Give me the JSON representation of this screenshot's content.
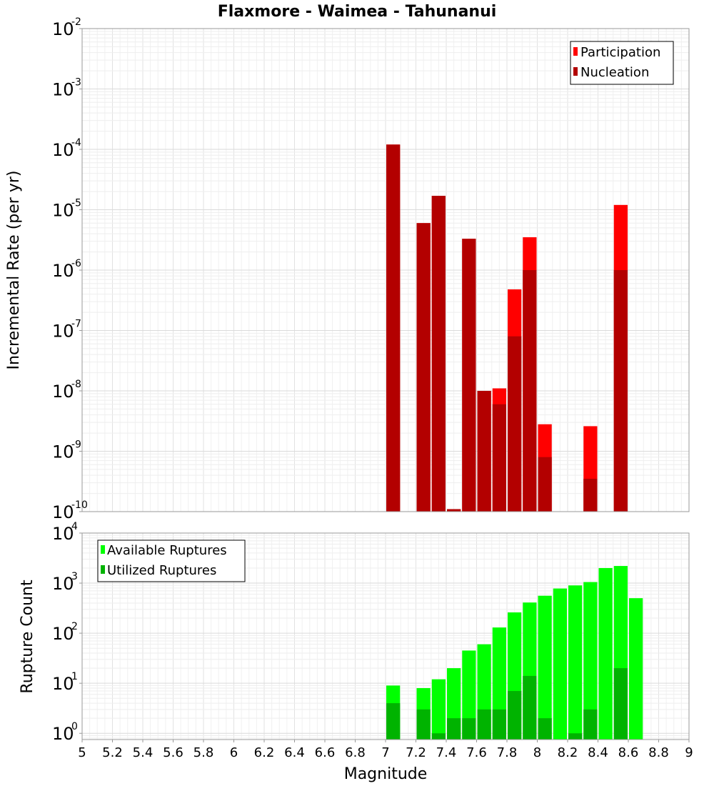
{
  "chart_data": [
    {
      "type": "bar",
      "title": "Flaxmore - Waimea - Tahunanui",
      "xlabel": "",
      "ylabel": "Incremental Rate (per yr)",
      "yscale": "log",
      "ylim": [
        1e-10,
        0.01
      ],
      "xlim": [
        5,
        9
      ],
      "bin_width": 0.1,
      "y_ticks": [
        {
          "base": "10",
          "exp": "-2"
        },
        {
          "base": "10",
          "exp": "-3"
        },
        {
          "base": "10",
          "exp": "-4"
        },
        {
          "base": "10",
          "exp": "-5"
        },
        {
          "base": "10",
          "exp": "-6"
        },
        {
          "base": "10",
          "exp": "-7"
        },
        {
          "base": "10",
          "exp": "-8"
        },
        {
          "base": "10",
          "exp": "-9"
        },
        {
          "base": "10",
          "exp": "-10"
        }
      ],
      "legend": [
        {
          "label": "Participation",
          "color": "#ff0000"
        },
        {
          "label": "Nucleation",
          "color": "#b30000"
        }
      ],
      "legend_position": "top-right",
      "series": [
        {
          "name": "Participation",
          "color": "#ff0000",
          "x": [
            7.05,
            7.25,
            7.35,
            7.45,
            7.55,
            7.65,
            7.75,
            7.85,
            7.95,
            8.05,
            8.35,
            8.55
          ],
          "values": [
            0.00012,
            6e-06,
            1.7e-05,
            1.1e-10,
            3.3e-06,
            1e-08,
            1.1e-08,
            4.8e-07,
            3.5e-06,
            2.8e-09,
            2.6e-09,
            1.2e-05
          ]
        },
        {
          "name": "Nucleation",
          "color": "#b30000",
          "x": [
            7.05,
            7.25,
            7.35,
            7.45,
            7.55,
            7.65,
            7.75,
            7.85,
            7.95,
            8.05,
            8.35,
            8.55
          ],
          "values": [
            0.00012,
            6e-06,
            1.7e-05,
            1.1e-10,
            3.3e-06,
            1e-08,
            6e-09,
            8e-08,
            1e-06,
            8e-10,
            3.5e-10,
            1e-06
          ]
        }
      ]
    },
    {
      "type": "bar",
      "title": "",
      "xlabel": "Magnitude",
      "ylabel": "Rupture Count",
      "yscale": "log",
      "ylim": [
        0.75,
        10000.0
      ],
      "xlim": [
        5,
        9
      ],
      "bin_width": 0.1,
      "x_ticks": [
        "5",
        "5.2",
        "5.4",
        "5.6",
        "5.8",
        "6",
        "6.2",
        "6.4",
        "6.6",
        "6.8",
        "7",
        "7.2",
        "7.4",
        "7.6",
        "7.8",
        "8",
        "8.2",
        "8.4",
        "8.6",
        "8.8",
        "9"
      ],
      "y_ticks": [
        {
          "base": "10",
          "exp": "4"
        },
        {
          "base": "10",
          "exp": "3"
        },
        {
          "base": "10",
          "exp": "2"
        },
        {
          "base": "10",
          "exp": "1"
        },
        {
          "base": "10",
          "exp": "0"
        }
      ],
      "legend": [
        {
          "label": "Available Ruptures",
          "color": "#00ff00"
        },
        {
          "label": "Utilized Ruptures",
          "color": "#00b300"
        }
      ],
      "legend_position": "top-left",
      "series": [
        {
          "name": "Available Ruptures",
          "color": "#00ff00",
          "x": [
            7.05,
            7.25,
            7.35,
            7.45,
            7.55,
            7.65,
            7.75,
            7.85,
            7.95,
            8.05,
            8.15,
            8.25,
            8.35,
            8.45,
            8.55,
            8.65
          ],
          "values": [
            9,
            8,
            12,
            20,
            45,
            60,
            130,
            260,
            410,
            560,
            780,
            900,
            1050,
            2000,
            2200,
            500
          ]
        },
        {
          "name": "Utilized Ruptures",
          "color": "#00b300",
          "x": [
            7.05,
            7.25,
            7.35,
            7.45,
            7.55,
            7.65,
            7.75,
            7.85,
            7.95,
            8.05,
            8.25,
            8.35,
            8.55
          ],
          "values": [
            4,
            3,
            1,
            2,
            2,
            3,
            3,
            7,
            14,
            2,
            1,
            3,
            20
          ]
        }
      ]
    }
  ]
}
